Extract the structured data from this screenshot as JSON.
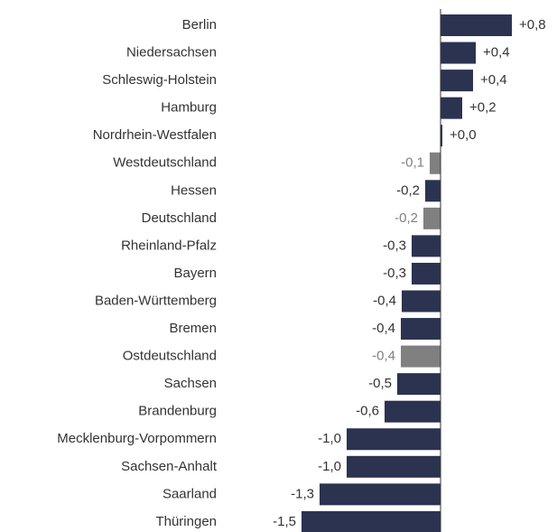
{
  "chart_data": {
    "type": "barh",
    "categories": [
      "Berlin",
      "Niedersachsen",
      "Schleswig-Holstein",
      "Hamburg",
      "Nordrhein-Westfalen",
      "Westdeutschland",
      "Hessen",
      "Deutschland",
      "Rheinland-Pfalz",
      "Bayern",
      "Baden-Württemberg",
      "Bremen",
      "Ostdeutschland",
      "Sachsen",
      "Brandenburg",
      "Mecklenburg-Vorpommern",
      "Sachsen-Anhalt",
      "Saarland",
      "Thüringen"
    ],
    "values": [
      0.79,
      0.39,
      0.36,
      0.24,
      0.02,
      -0.12,
      -0.17,
      -0.19,
      -0.32,
      -0.32,
      -0.43,
      -0.44,
      -0.44,
      -0.48,
      -0.62,
      -1.04,
      -1.04,
      -1.34,
      -1.54
    ],
    "value_labels": [
      "+0,8",
      "+0,4",
      "+0,4",
      "+0,2",
      "+0,0",
      "-0,1",
      "-0,2",
      "-0,2",
      "-0,3",
      "-0,3",
      "-0,4",
      "-0,4",
      "-0,4",
      "-0,5",
      "-0,6",
      "-1,0",
      "-1,0",
      "-1,3",
      "-1,5"
    ],
    "colors": [
      "#2b3350",
      "#2b3350",
      "#2b3350",
      "#2b3350",
      "#2b3350",
      "#808080",
      "#2b3350",
      "#808080",
      "#2b3350",
      "#2b3350",
      "#2b3350",
      "#2b3350",
      "#808080",
      "#2b3350",
      "#2b3350",
      "#2b3350",
      "#2b3350",
      "#2b3350",
      "#2b3350"
    ],
    "xlim": [
      -1.6,
      0.9
    ]
  }
}
